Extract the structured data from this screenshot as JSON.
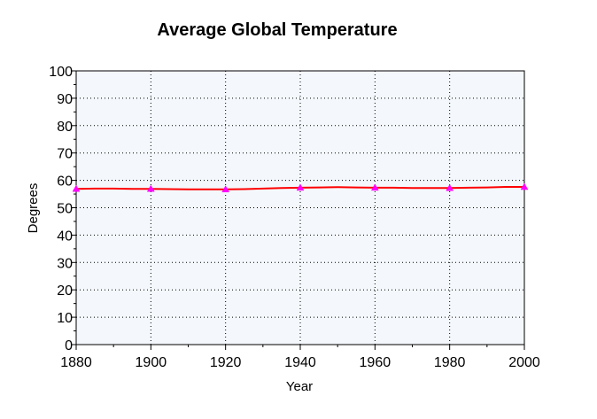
{
  "chart_data": {
    "type": "line",
    "title": "Average Global Temperature",
    "xlabel": "Year",
    "ylabel": "Degrees",
    "xlim": [
      1880,
      2000
    ],
    "ylim": [
      0,
      100
    ],
    "x_ticks": [
      1880,
      1900,
      1920,
      1940,
      1960,
      1980,
      2000
    ],
    "y_ticks": [
      0,
      10,
      20,
      30,
      40,
      50,
      60,
      70,
      80,
      90,
      100
    ],
    "x_tick_labels": [
      "1880",
      "1900",
      "1920",
      "1940",
      "1960",
      "1980",
      "2000"
    ],
    "y_tick_labels": [
      "0",
      "10",
      "20",
      "30",
      "40",
      "50",
      "60",
      "70",
      "80",
      "90",
      "100"
    ],
    "grid": true,
    "series": [
      {
        "line_points": [
          [
            1880,
            56.9
          ],
          [
            1885,
            57.0
          ],
          [
            1890,
            57.0
          ],
          [
            1895,
            56.9
          ],
          [
            1900,
            56.9
          ],
          [
            1905,
            56.8
          ],
          [
            1910,
            56.7
          ],
          [
            1915,
            56.7
          ],
          [
            1920,
            56.7
          ],
          [
            1925,
            56.8
          ],
          [
            1930,
            57.0
          ],
          [
            1935,
            57.2
          ],
          [
            1940,
            57.3
          ],
          [
            1945,
            57.4
          ],
          [
            1950,
            57.5
          ],
          [
            1955,
            57.4
          ],
          [
            1960,
            57.3
          ],
          [
            1965,
            57.3
          ],
          [
            1970,
            57.2
          ],
          [
            1975,
            57.2
          ],
          [
            1980,
            57.2
          ],
          [
            1985,
            57.3
          ],
          [
            1990,
            57.4
          ],
          [
            1995,
            57.6
          ],
          [
            2000,
            57.6
          ]
        ],
        "markers": [
          [
            1880,
            56.9
          ],
          [
            1900,
            56.9
          ],
          [
            1920,
            56.7
          ],
          [
            1940,
            57.3
          ],
          [
            1960,
            57.3
          ],
          [
            1980,
            57.2
          ],
          [
            2000,
            57.6
          ]
        ]
      }
    ]
  },
  "colors": {
    "plot_background": "#f4f8fd",
    "grid": "#000000",
    "line": "#ff0000",
    "marker": "#ff00ff",
    "axis": "#000000"
  }
}
